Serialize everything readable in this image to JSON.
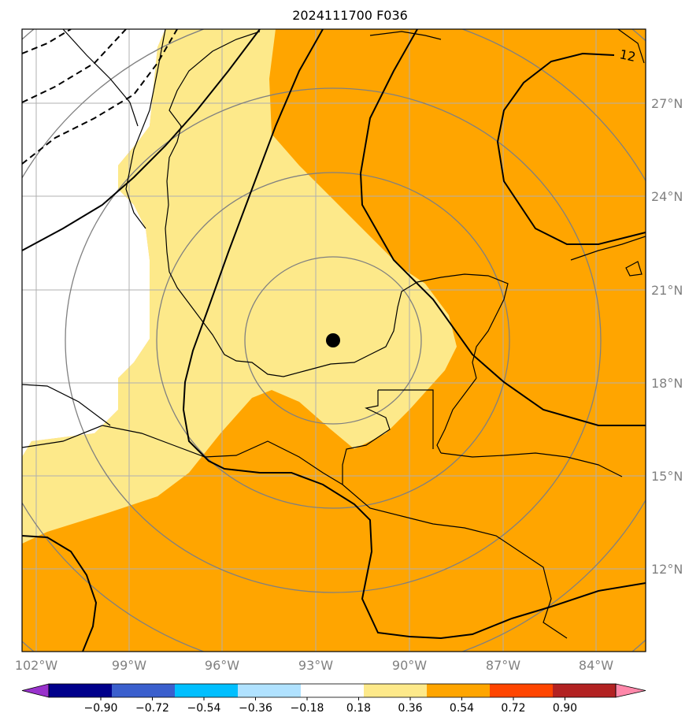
{
  "title": "2024111700 F036",
  "map": {
    "lon_ticks": [
      "102°W",
      "99°W",
      "96°W",
      "93°W",
      "90°W",
      "87°W",
      "84°W"
    ],
    "lat_ticks": [
      "27°N",
      "24°N",
      "21°N",
      "18°N",
      "15°N",
      "12°N"
    ],
    "contour_label": "12",
    "center_marker": {
      "lon": -92.3,
      "lat": 19.4
    },
    "range_rings": 5,
    "colors": {
      "light_yellow": "#fde98a",
      "orange": "#ffa500",
      "ring": "#808080",
      "grid": "#b0b0b0",
      "coast": "#000000"
    }
  },
  "colorbar": {
    "labels": [
      "−0.90",
      "−0.72",
      "−0.54",
      "−0.36",
      "−0.18",
      "0.18",
      "0.36",
      "0.54",
      "0.72",
      "0.90"
    ],
    "colors": [
      "#9932cc",
      "#00008b",
      "#3a5fcd",
      "#00bfff",
      "#b0e2ff",
      "#ffffff",
      "#fde98a",
      "#ffa500",
      "#ff4500",
      "#b22222",
      "#ff88aa"
    ]
  }
}
